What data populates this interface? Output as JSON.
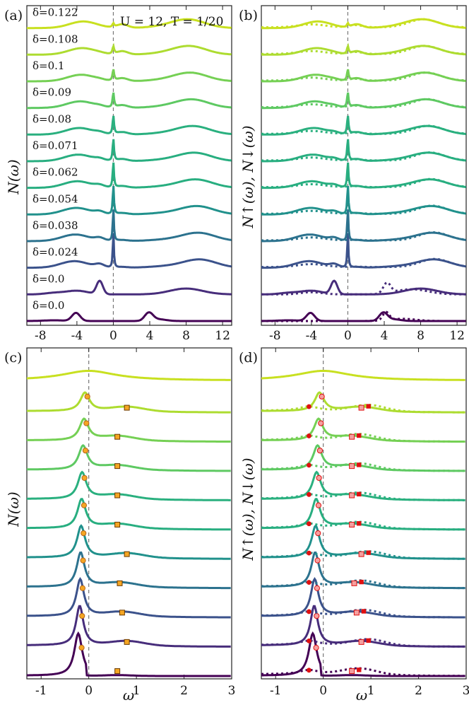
{
  "figure": {
    "annotation": "U = 12,  T = 1/20"
  },
  "palette": [
    "#440154",
    "#472d7b",
    "#3b528b",
    "#2c728e",
    "#21918c",
    "#28ae80",
    "#2ab07f",
    "#5ec962",
    "#75d054",
    "#addc30",
    "#c8e020"
  ],
  "chart_data": [
    {
      "panel": "(a)",
      "type": "line",
      "ylabel": "N(ω)",
      "xlabel": "",
      "xlim": [
        -9.5,
        13
      ],
      "xticks": [
        -8,
        -4,
        0,
        4,
        8,
        12
      ],
      "xtick_labels": [
        "-8",
        "-4",
        "0",
        "4",
        "8",
        "12"
      ],
      "deltas": [
        "δ=0.0",
        "δ=0.0",
        "δ=0.024",
        "δ=0.038",
        "δ=0.054",
        "δ=0.062",
        "δ=0.071",
        "δ=0.08",
        "δ=0.09",
        "δ=0.1",
        "δ=0.108",
        "δ=0.122"
      ],
      "series": [
        {
          "name": "δ=0.0",
          "color": "#440154",
          "points": [
            [
              -9.5,
              0.0
            ],
            [
              -8,
              0.05
            ],
            [
              -6,
              0.2
            ],
            [
              -4.3,
              0.5
            ],
            [
              -3.6,
              0.1
            ],
            [
              -3,
              0
            ],
            [
              3.2,
              0
            ],
            [
              3.8,
              0.5
            ],
            [
              4.6,
              0.2
            ],
            [
              7,
              0.05
            ],
            [
              9,
              0.05
            ],
            [
              10.5,
              0.05
            ],
            [
              13,
              0
            ]
          ]
        },
        {
          "name": "δ=0.0",
          "color": "#440154",
          "points": [
            [
              -9.5,
              0
            ],
            [
              -8,
              0.05
            ],
            [
              -6,
              0.2
            ],
            [
              -4,
              0.4
            ],
            [
              -2.5,
              0.2
            ],
            [
              -1.5,
              0.8
            ],
            [
              -1,
              0.4
            ],
            [
              -0.4,
              0
            ],
            [
              5,
              0
            ],
            [
              8,
              0.45
            ],
            [
              11,
              0.2
            ],
            [
              13,
              0.05
            ]
          ]
        },
        {
          "name": "δ=0.024",
          "color": "#472d7b",
          "points": [
            [
              -9.5,
              0
            ],
            [
              -8,
              0.1
            ],
            [
              -6,
              0.3
            ],
            [
              -4,
              0.45
            ],
            [
              -2,
              0.3
            ],
            [
              -0.5,
              0.3
            ],
            [
              -0.2,
              0.6
            ],
            [
              0,
              2.5
            ],
            [
              0.15,
              0.3
            ],
            [
              1,
              0.2
            ],
            [
              4,
              0.05
            ],
            [
              7,
              0.2
            ],
            [
              9.5,
              0.55
            ],
            [
              11,
              0.45
            ],
            [
              13,
              0.1
            ]
          ]
        },
        {
          "name": "δ=0.038",
          "color": "#3b528b",
          "points": [
            [
              -9.5,
              0
            ],
            [
              -8,
              0.1
            ],
            [
              -6,
              0.3
            ],
            [
              -4,
              0.5
            ],
            [
              -2.3,
              0.35
            ],
            [
              -1.5,
              0.6
            ],
            [
              -0.8,
              0.4
            ],
            [
              -0.2,
              0.5
            ],
            [
              0,
              2.2
            ],
            [
              0.2,
              0.3
            ],
            [
              1,
              0.2
            ],
            [
              4,
              0.05
            ],
            [
              7,
              0.25
            ],
            [
              10,
              0.7
            ],
            [
              12,
              0.4
            ],
            [
              13,
              0.2
            ]
          ]
        },
        {
          "name": "δ=0.054",
          "color": "#31688e",
          "points": [
            [
              -9.5,
              0
            ],
            [
              -8,
              0.15
            ],
            [
              -6,
              0.3
            ],
            [
              -4,
              0.4
            ],
            [
              -2,
              0.3
            ],
            [
              -0.5,
              0.3
            ],
            [
              0,
              1.9
            ],
            [
              0.3,
              0.3
            ],
            [
              1,
              0.2
            ],
            [
              4,
              0.05
            ],
            [
              7,
              0.2
            ],
            [
              9.5,
              0.6
            ],
            [
              12,
              0.35
            ],
            [
              13,
              0.2
            ]
          ]
        },
        {
          "name": "δ=0.062",
          "color": "#2c728e",
          "points": [
            [
              -9.5,
              0
            ],
            [
              -8,
              0.1
            ],
            [
              -6,
              0.25
            ],
            [
              -4,
              0.35
            ],
            [
              -2,
              0.3
            ],
            [
              -0.5,
              0.3
            ],
            [
              0,
              1.6
            ],
            [
              0.3,
              0.3
            ],
            [
              1,
              0.25
            ],
            [
              4,
              0.05
            ],
            [
              7,
              0.2
            ],
            [
              10,
              0.55
            ],
            [
              12,
              0.3
            ],
            [
              13,
              0.2
            ]
          ]
        },
        {
          "name": "δ=0.071",
          "color": "#26828e",
          "points": [
            [
              -9.5,
              0
            ],
            [
              -8,
              0.1
            ],
            [
              -6,
              0.25
            ],
            [
              -4,
              0.35
            ],
            [
              -2,
              0.3
            ],
            [
              -0.5,
              0.3
            ],
            [
              0,
              1.4
            ],
            [
              0.3,
              0.35
            ],
            [
              1,
              0.25
            ],
            [
              4,
              0.05
            ],
            [
              7,
              0.2
            ],
            [
              10,
              0.5
            ],
            [
              12,
              0.3
            ],
            [
              13,
              0.15
            ]
          ]
        },
        {
          "name": "δ=0.08",
          "color": "#21918c",
          "points": [
            [
              -9.5,
              0
            ],
            [
              -8,
              0.1
            ],
            [
              -6,
              0.25
            ],
            [
              -4,
              0.35
            ],
            [
              -2,
              0.3
            ],
            [
              -0.5,
              0.3
            ],
            [
              0,
              1.1
            ],
            [
              0.4,
              0.4
            ],
            [
              1,
              0.3
            ],
            [
              4,
              0.05
            ],
            [
              7,
              0.25
            ],
            [
              9.5,
              0.55
            ],
            [
              12,
              0.3
            ],
            [
              13,
              0.15
            ]
          ]
        },
        {
          "name": "δ=0.09",
          "color": "#1fa088",
          "points": [
            [
              -9.5,
              0
            ],
            [
              -8,
              0.1
            ],
            [
              -6,
              0.25
            ],
            [
              -4,
              0.35
            ],
            [
              -2,
              0.3
            ],
            [
              -0.5,
              0.3
            ],
            [
              0,
              0.9
            ],
            [
              0.5,
              0.45
            ],
            [
              1,
              0.35
            ],
            [
              4,
              0.05
            ],
            [
              7,
              0.3
            ],
            [
              9.5,
              0.55
            ],
            [
              12,
              0.3
            ],
            [
              13,
              0.15
            ]
          ]
        },
        {
          "name": "δ=0.1",
          "color": "#3bbb75",
          "points": [
            [
              -9.5,
              0
            ],
            [
              -8,
              0.1
            ],
            [
              -6,
              0.25
            ],
            [
              -4,
              0.3
            ],
            [
              -2,
              0.3
            ],
            [
              -0.5,
              0.3
            ],
            [
              0,
              0.8
            ],
            [
              0.6,
              0.5
            ],
            [
              1.2,
              0.35
            ],
            [
              4,
              0.05
            ],
            [
              7,
              0.3
            ],
            [
              9.5,
              0.5
            ],
            [
              12,
              0.3
            ],
            [
              13,
              0.15
            ]
          ]
        },
        {
          "name": "δ=0.108",
          "color": "#5ec962",
          "points": [
            [
              -9.5,
              0
            ],
            [
              -8,
              0.1
            ],
            [
              -6,
              0.25
            ],
            [
              -4,
              0.3
            ],
            [
              -2,
              0.3
            ],
            [
              -0.5,
              0.3
            ],
            [
              0,
              0.65
            ],
            [
              0.5,
              0.4
            ],
            [
              1,
              0.45
            ],
            [
              1.5,
              0.3
            ],
            [
              4,
              0.05
            ],
            [
              7,
              0.3
            ],
            [
              9.5,
              0.45
            ],
            [
              12,
              0.3
            ],
            [
              13,
              0.15
            ]
          ]
        },
        {
          "name": "δ=0.122",
          "color": "#c8e020",
          "points": [
            [
              -9.5,
              0
            ],
            [
              -8,
              0.05
            ],
            [
              -6,
              0.2
            ],
            [
              -4,
              0.25
            ],
            [
              -2,
              0.3
            ],
            [
              -0.5,
              0.35
            ],
            [
              0,
              0.55
            ],
            [
              0.5,
              0.35
            ],
            [
              1.2,
              0.35
            ],
            [
              3,
              0.1
            ],
            [
              5,
              0.15
            ],
            [
              8,
              0.35
            ],
            [
              11,
              0.3
            ],
            [
              13,
              0.15
            ]
          ]
        }
      ]
    },
    {
      "panel": "(b)",
      "type": "line",
      "ylabel": "N↑(ω), N↓(ω)",
      "xlabel": "",
      "xlim": [
        -9.5,
        13
      ],
      "xticks": [
        -8,
        -4,
        0,
        4,
        8,
        12
      ],
      "xtick_labels": [
        "-8",
        "-4",
        "0",
        "4",
        "8",
        "12"
      ],
      "line_styles": [
        "solid: spin up",
        "dotted: spin down"
      ]
    },
    {
      "panel": "(c)",
      "type": "line",
      "ylabel": "N(ω)",
      "xlabel": "ω",
      "xlim": [
        -1.3,
        3
      ],
      "xticks": [
        -1,
        0,
        1,
        2,
        3
      ],
      "xtick_labels": [
        "-1",
        "0",
        "1",
        "2",
        "3"
      ],
      "peak_markers": {
        "circle_x": [
          -0.15,
          -0.14,
          -0.13,
          -0.12,
          -0.11,
          -0.1,
          -0.09,
          -0.07,
          -0.05,
          -0.03
        ],
        "square_x": [
          0.6,
          0.8,
          0.7,
          0.65,
          0.8,
          0.6,
          0.6,
          0.6,
          0.6,
          0.8
        ]
      }
    },
    {
      "panel": "(d)",
      "type": "line",
      "ylabel": "N↑(ω), N↓(ω)",
      "xlabel": "ω",
      "xlim": [
        -1.3,
        3
      ],
      "xticks": [
        -1,
        0,
        1,
        2,
        3
      ],
      "xtick_labels": [
        "-1",
        "0",
        "1",
        "2",
        "3"
      ]
    }
  ]
}
